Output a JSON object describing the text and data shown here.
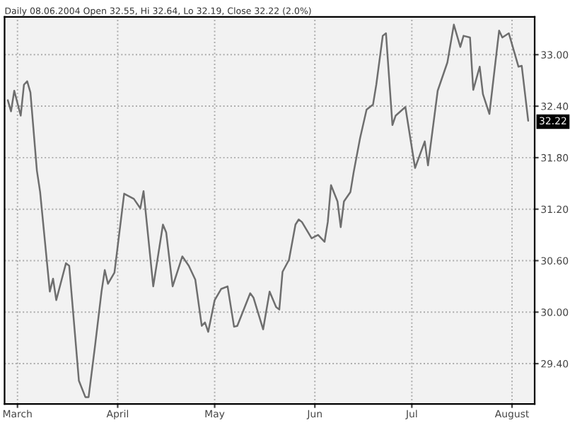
{
  "chart_data": {
    "type": "line",
    "title": "Daily 08.06.2004 Open 32.55, Hi 32.64, Lo 32.19, Close 32.22 (2.0%)",
    "x": [
      "2004-02-27",
      "2004-02-28",
      "2004-02-29",
      "2004-03-02",
      "2004-03-03",
      "2004-03-04",
      "2004-03-05",
      "2004-03-07",
      "2004-03-08",
      "2004-03-11",
      "2004-03-12",
      "2004-03-13",
      "2004-03-16",
      "2004-03-17",
      "2004-03-20",
      "2004-03-22",
      "2004-03-23",
      "2004-03-25",
      "2004-03-27",
      "2004-03-28",
      "2004-03-29",
      "2004-03-31",
      "2004-04-03",
      "2004-04-06",
      "2004-04-08",
      "2004-04-09",
      "2004-04-12",
      "2004-04-15",
      "2004-04-16",
      "2004-04-18",
      "2004-04-21",
      "2004-04-23",
      "2004-04-25",
      "2004-04-27",
      "2004-04-28",
      "2004-04-29",
      "2004-05-01",
      "2004-05-03",
      "2004-05-05",
      "2004-05-07",
      "2004-05-08",
      "2004-05-12",
      "2004-05-13",
      "2004-05-16",
      "2004-05-18",
      "2004-05-20",
      "2004-05-21",
      "2004-05-22",
      "2004-05-24",
      "2004-05-26",
      "2004-05-27",
      "2004-05-28",
      "2004-05-31",
      "2004-06-02",
      "2004-06-04",
      "2004-06-05",
      "2004-06-06",
      "2004-06-08",
      "2004-06-09",
      "2004-06-10",
      "2004-06-12",
      "2004-06-13",
      "2004-06-15",
      "2004-06-17",
      "2004-06-19",
      "2004-06-20",
      "2004-06-22",
      "2004-06-23",
      "2004-06-25",
      "2004-06-26",
      "2004-06-29",
      "2004-07-02",
      "2004-07-05",
      "2004-07-06",
      "2004-07-09",
      "2004-07-12",
      "2004-07-14",
      "2004-07-16",
      "2004-07-17",
      "2004-07-19",
      "2004-07-20",
      "2004-07-22",
      "2004-07-23",
      "2004-07-25",
      "2004-07-28",
      "2004-07-29",
      "2004-07-31",
      "2004-08-03",
      "2004-08-04",
      "2004-08-06"
    ],
    "series": [
      {
        "color": "#6e6e6e",
        "values": [
          32.47,
          32.34,
          32.58,
          32.29,
          32.65,
          32.69,
          32.56,
          31.65,
          31.4,
          30.24,
          30.39,
          30.14,
          30.57,
          30.54,
          29.2,
          29.01,
          29.01,
          29.61,
          30.24,
          30.49,
          30.33,
          30.46,
          31.38,
          31.32,
          31.21,
          31.41,
          30.3,
          31.02,
          30.93,
          30.3,
          30.65,
          30.54,
          30.38,
          29.84,
          29.88,
          29.77,
          30.14,
          30.27,
          30.3,
          29.83,
          29.84,
          30.22,
          30.17,
          29.8,
          30.24,
          30.06,
          30.03,
          30.47,
          30.61,
          31.02,
          31.08,
          31.05,
          30.86,
          30.9,
          30.82,
          31.05,
          31.48,
          31.29,
          30.99,
          31.29,
          31.4,
          31.63,
          32.03,
          32.36,
          32.42,
          32.65,
          33.22,
          33.25,
          32.18,
          32.29,
          32.39,
          31.68,
          31.99,
          31.71,
          32.58,
          32.91,
          33.35,
          33.09,
          33.22,
          33.2,
          32.59,
          32.86,
          32.54,
          32.31,
          33.28,
          33.2,
          33.25,
          32.86,
          32.87,
          32.23
        ]
      }
    ],
    "xlim": [
      "2004-02-26",
      "2004-08-08"
    ],
    "xticks": [
      {
        "value": "2004-03-01",
        "label": "March"
      },
      {
        "value": "2004-04-01",
        "label": "April"
      },
      {
        "value": "2004-05-01",
        "label": "May"
      },
      {
        "value": "2004-06-01",
        "label": "Jun"
      },
      {
        "value": "2004-07-01",
        "label": "Jul"
      },
      {
        "value": "2004-08-01",
        "label": "August"
      }
    ],
    "ylim": [
      28.93,
      33.44
    ],
    "yticks": [
      {
        "value": 29.4,
        "label": "29.40"
      },
      {
        "value": 30.0,
        "label": "30.00"
      },
      {
        "value": 30.6,
        "label": "30.60"
      },
      {
        "value": 31.2,
        "label": "31.20"
      },
      {
        "value": 31.8,
        "label": "31.80"
      },
      {
        "value": 32.4,
        "label": "32.40"
      },
      {
        "value": 33.0,
        "label": "33.00"
      }
    ],
    "annotations": [
      {
        "text": "32.22",
        "x": "2004-08-06",
        "y": 32.22
      }
    ],
    "grid": true,
    "legend": false,
    "marker": "none",
    "line_style": "solid"
  }
}
